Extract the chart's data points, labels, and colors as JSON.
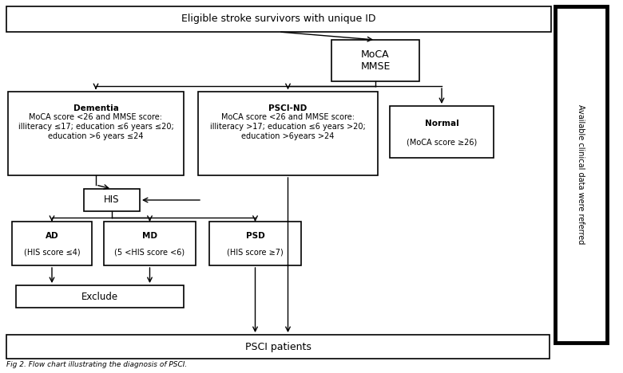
{
  "bg_color": "#ffffff",
  "box_color": "#ffffff",
  "box_edge": "#000000",
  "text_color": "#000000",
  "title": "Eligible stroke survivors with unique ID",
  "moca_mmse": "MoCA\nMMSE",
  "dementia_title": "Dementia",
  "dementia_text": "MoCA score <26 and MMSE score:\nilliteracy ≤17; education ≤6 years ≤20;\neducation >6 years ≤24",
  "psci_nd_title": "PSCI-ND",
  "psci_nd_text": "MoCA score <26 and MMSE score:\nilliteracy >17; education ≤6 years >20;\neducation >6years >24",
  "normal_title": "Normal",
  "normal_text": "(MoCA score ≥26)",
  "his": "HIS",
  "ad_title": "AD",
  "ad_text": "(HIS score ≤4)",
  "md_title": "MD",
  "md_text": "(5 <HIS score <6)",
  "psd_title": "PSD",
  "psd_text": "(HIS score ≥7)",
  "exclude": "Exclude",
  "psci_patients": "PSCI patients",
  "side_text": "Available clinical data were referred",
  "caption": "Fig 2. Flow chart illustrating the diagnosis of PSCI."
}
